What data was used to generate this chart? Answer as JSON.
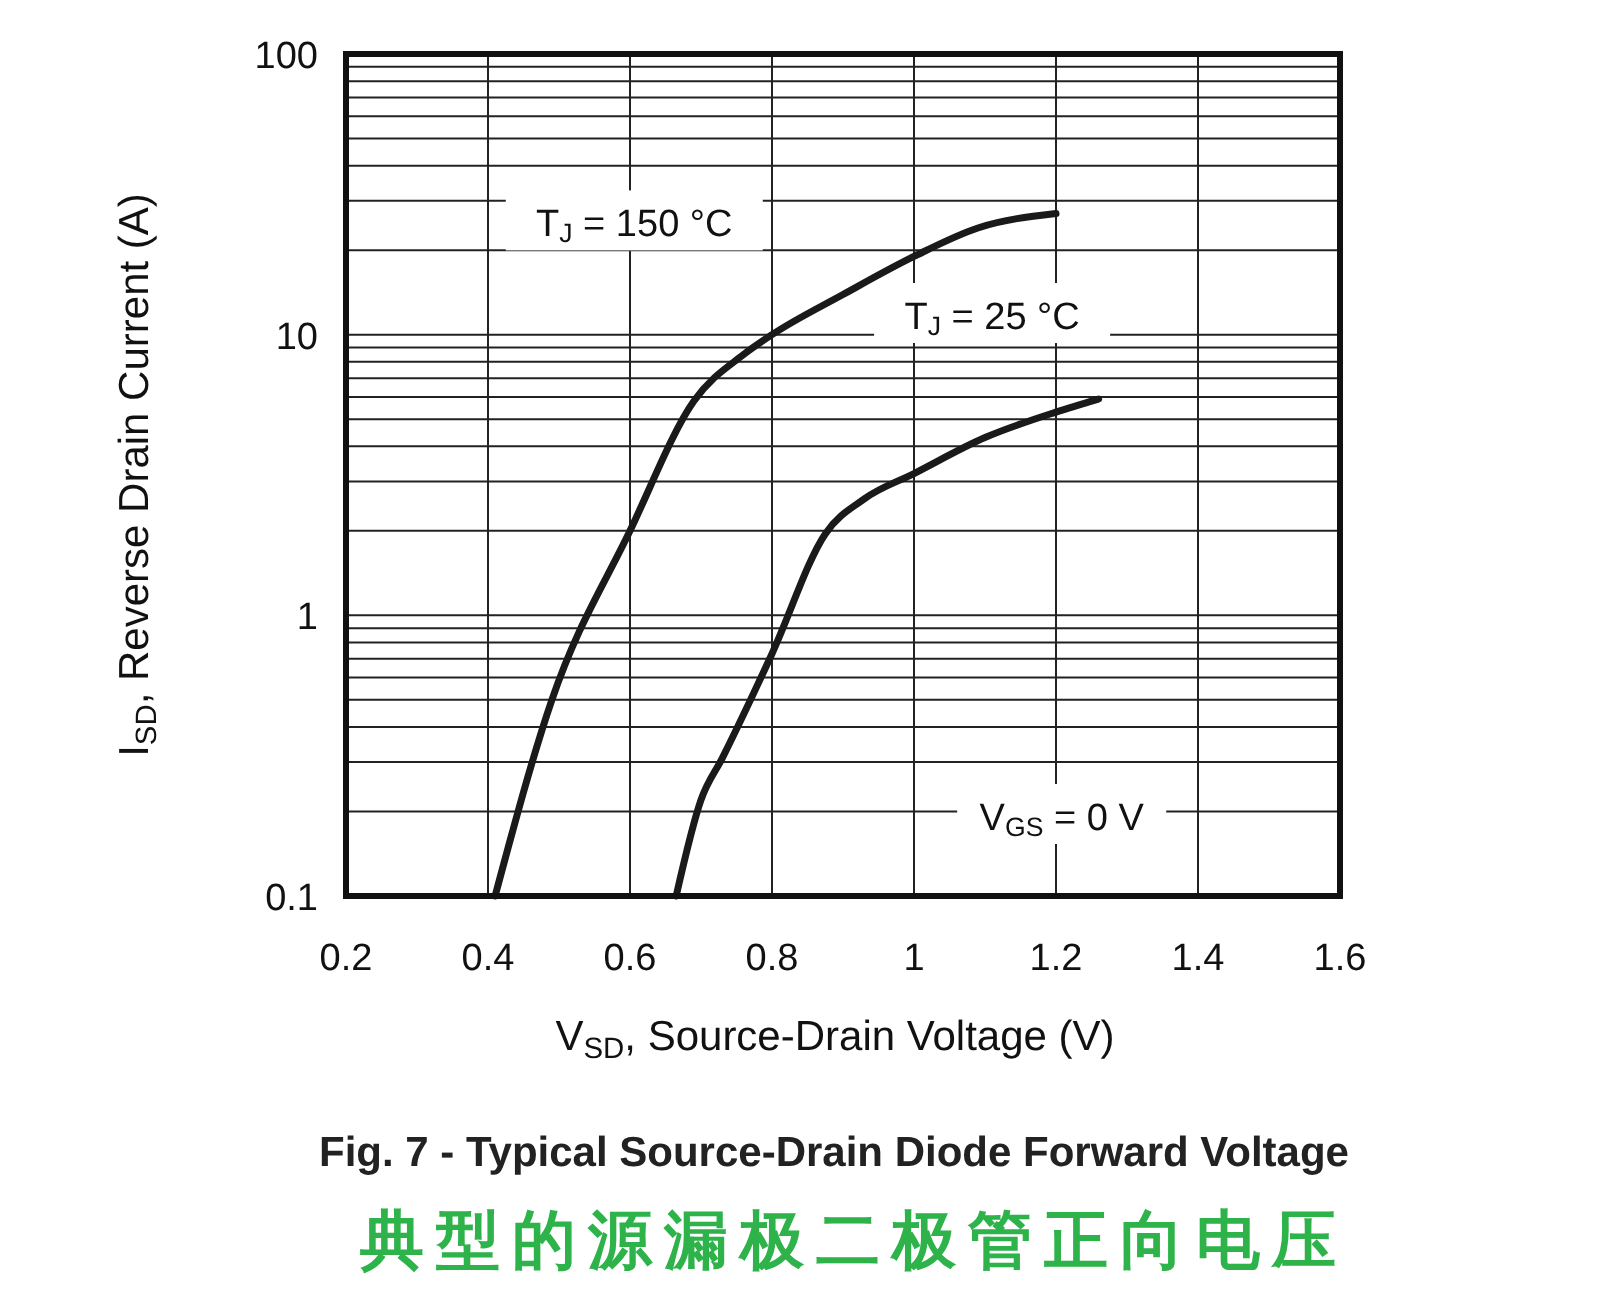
{
  "chart_data": {
    "type": "line",
    "title": "Fig. 7 - Typical Source-Drain Diode Forward Voltage",
    "subtitle": "典型的源漏极二极管正向电压",
    "xlabel": "V$_{SD}$, Source-Drain Voltage (V)",
    "ylabel": "I$_{SD}$, Reverse Drain Current (A)",
    "series": [
      {
        "color": "#1a1a1a",
        "x": [
          0.41,
          0.49,
          0.6,
          0.69,
          0.76,
          0.8,
          0.9,
          1.0,
          1.09,
          1.2
        ],
        "values": [
          0.1,
          0.5,
          2,
          5.8,
          8.5,
          10,
          13.9,
          19,
          24,
          27
        ]
      },
      {
        "color": "#1a1a1a",
        "x": [
          0.665,
          0.7,
          0.73,
          0.8,
          0.875,
          0.93,
          1.0,
          1.1,
          1.2,
          1.26
        ],
        "values": [
          0.1,
          0.22,
          0.31,
          0.73,
          1.95,
          2.6,
          3.2,
          4.3,
          5.3,
          5.9
        ]
      }
    ],
    "annotations": [
      "T$_{J}$ = 150 °C",
      "T$_{J}$ = 25 °C",
      "V$_{GS}$ = 0 V"
    ],
    "xlim": [
      0.2,
      1.6
    ],
    "xticks": [
      0.2,
      0.4,
      0.6,
      0.8,
      1,
      1.2,
      1.4,
      1.6
    ],
    "ylim": [
      0.1,
      100
    ],
    "yticks": [
      0.1,
      1,
      10,
      100
    ],
    "log": "y",
    "grid": true,
    "line_style": "solid",
    "marker": "none"
  }
}
